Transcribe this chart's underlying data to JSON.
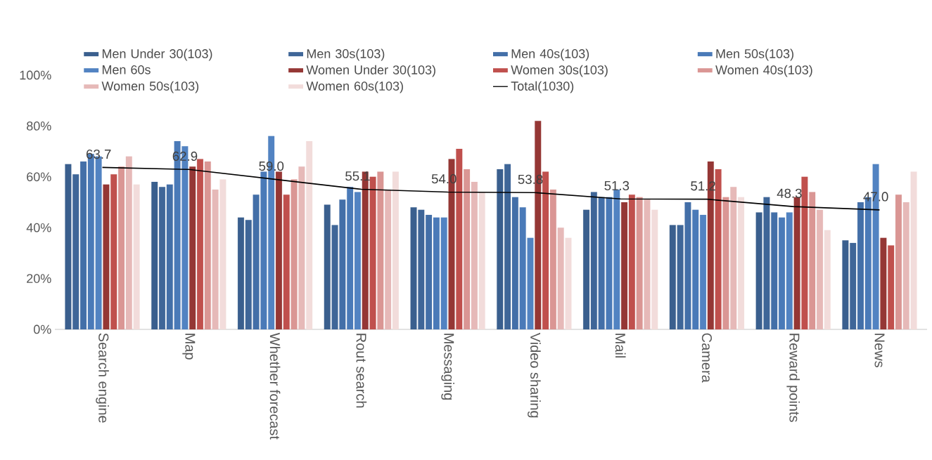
{
  "chart_data": {
    "type": "bar",
    "categories": [
      "Search engine",
      "Map",
      "Whether forecast",
      "Rout search",
      "Messaging",
      "Video sharing",
      "Mail",
      "Camera",
      "Reward points",
      "News"
    ],
    "series": [
      {
        "name": "Men Under 30(103)",
        "color": "#3a5f8e",
        "values": [
          65,
          58,
          44,
          49,
          48,
          63,
          47,
          41,
          46,
          35
        ]
      },
      {
        "name": "Men 30s(103)",
        "color": "#3f6698",
        "values": [
          61,
          56,
          43,
          41,
          47,
          65,
          54,
          41,
          52,
          34
        ]
      },
      {
        "name": "Men 40s(103)",
        "color": "#436fa8",
        "values": [
          66,
          57,
          53,
          51,
          45,
          52,
          52,
          50,
          46,
          50
        ]
      },
      {
        "name": "Men 50s(103)",
        "color": "#4a7ab8",
        "values": [
          69,
          74,
          62,
          56,
          44,
          48,
          52,
          47,
          44,
          52
        ]
      },
      {
        "name": "Men 60s",
        "color": "#5283c2",
        "values": [
          68,
          72,
          76,
          54,
          44,
          36,
          55,
          45,
          46,
          65
        ]
      },
      {
        "name": "Women Under 30(103)",
        "color": "#953735",
        "values": [
          57,
          64,
          62,
          62,
          67,
          82,
          50,
          66,
          52,
          36
        ]
      },
      {
        "name": "Women 30s(103)",
        "color": "#c0504d",
        "values": [
          61,
          67,
          53,
          60,
          71,
          62,
          53,
          63,
          60,
          33
        ]
      },
      {
        "name": "Women 40s(103)",
        "color": "#da9694",
        "values": [
          64,
          66,
          59,
          62,
          63,
          55,
          52,
          52,
          54,
          53
        ]
      },
      {
        "name": "Women 50s(103)",
        "color": "#e6b9b8",
        "values": [
          68,
          55,
          64,
          55,
          58,
          40,
          51,
          56,
          47,
          50
        ]
      },
      {
        "name": "Women 60s(103)",
        "color": "#f2dcdb",
        "values": [
          57,
          59,
          74,
          62,
          54,
          36,
          47,
          52,
          39,
          62
        ]
      },
      {
        "name": "Total(1030)",
        "type": "line",
        "color": "#000000",
        "values": [
          63.7,
          62.9,
          59.0,
          55.1,
          54.0,
          53.8,
          51.3,
          51.2,
          48.3,
          47.0
        ],
        "value_labels": [
          "63.7",
          "62.9",
          "59.0",
          "55.1",
          "54.0",
          "53.8",
          "51.3",
          "51.2",
          "48.3",
          "47.0"
        ]
      }
    ],
    "ylim": [
      0,
      100
    ],
    "yticks": [
      {
        "value": 0,
        "label": "0%"
      },
      {
        "value": 20,
        "label": "20%"
      },
      {
        "value": 40,
        "label": "40%"
      },
      {
        "value": 60,
        "label": "60%"
      },
      {
        "value": 80,
        "label": "80%"
      },
      {
        "value": 100,
        "label": "100%"
      }
    ],
    "legend": "top",
    "grid": false
  }
}
